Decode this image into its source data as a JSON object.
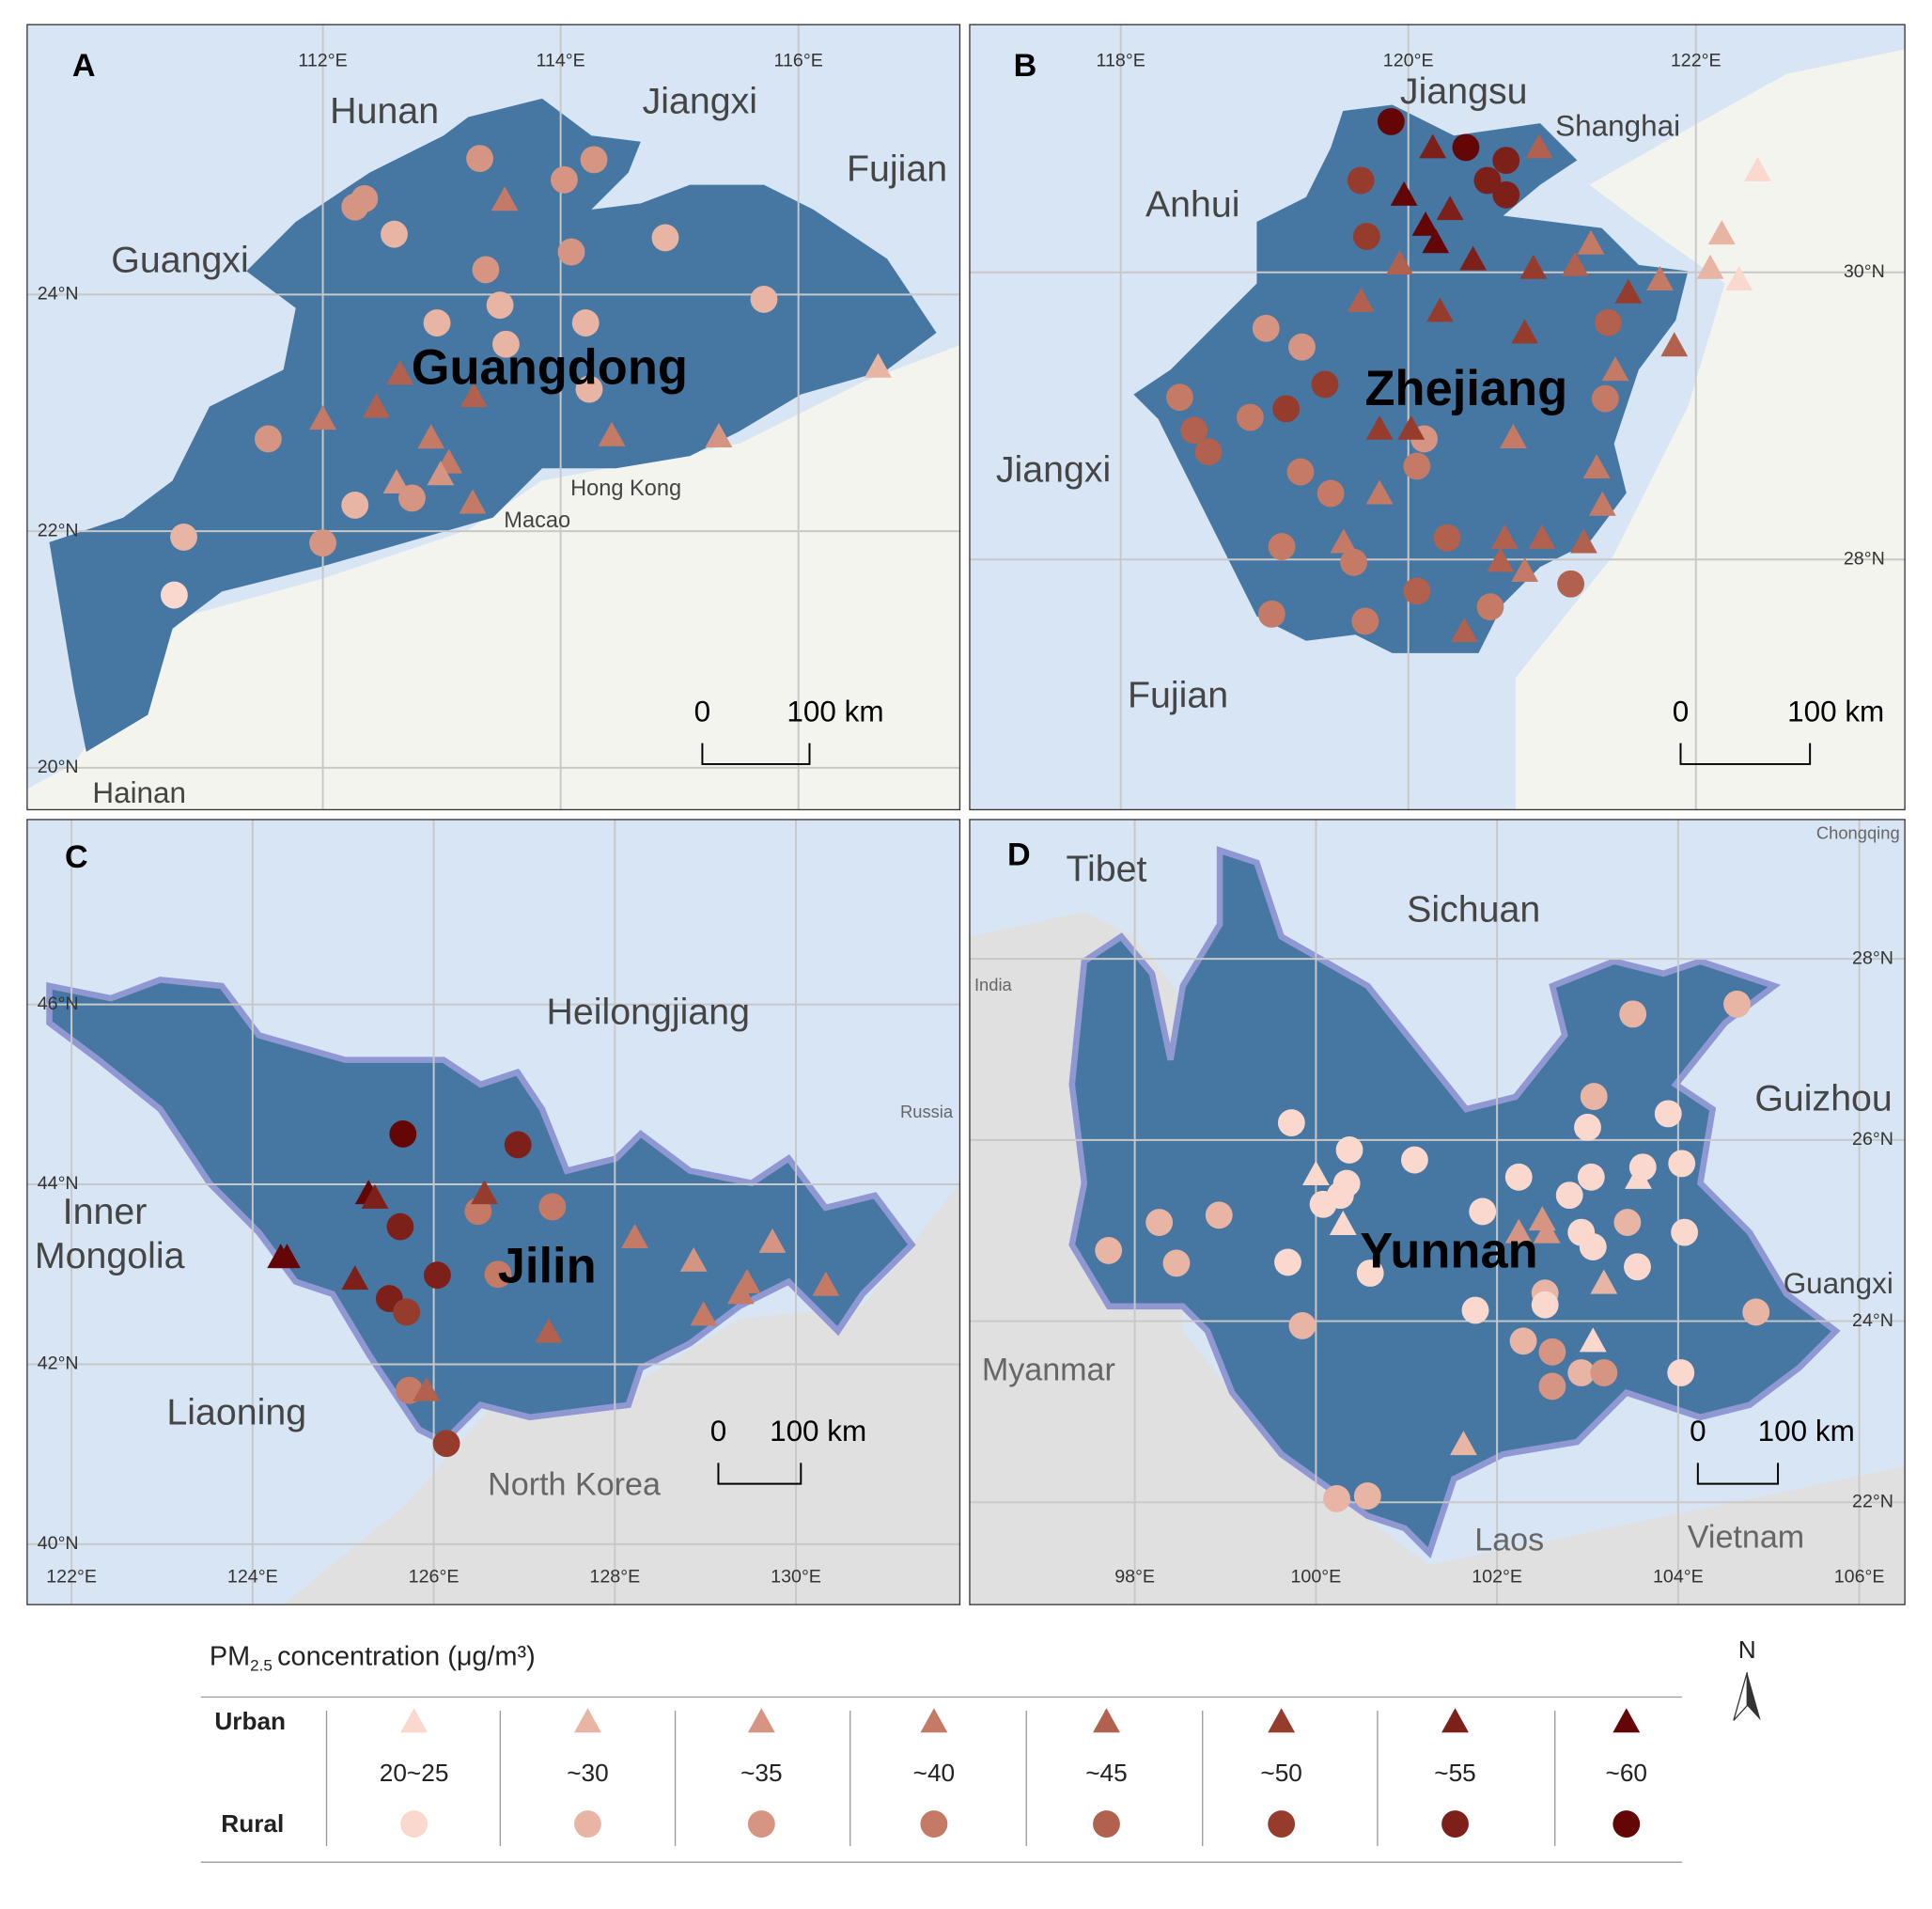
{
  "panels": [
    {
      "letter": "A",
      "places": [
        "Hunan",
        "Jiangxi",
        "Fujian",
        "Guangxi",
        "Guangdong",
        "Hong Kong",
        "Macao",
        "Hainan"
      ],
      "lon_ticks": [
        {
          "value": 112,
          "label": "112°E"
        },
        {
          "value": 114,
          "label": "114°E"
        },
        {
          "value": 116,
          "label": "116°E"
        }
      ],
      "lat_ticks": [
        {
          "value": 24,
          "label": "24°N"
        },
        {
          "value": 22,
          "label": "22°N"
        },
        {
          "value": 20,
          "label": "20°N"
        }
      ],
      "scale_bar": [
        "0",
        "100 km"
      ],
      "rural_sites": [
        [
          113.32,
          25.15,
          35
        ],
        [
          114.28,
          25.14,
          35
        ],
        [
          114.03,
          24.97,
          35
        ],
        [
          112.35,
          24.81,
          35
        ],
        [
          112.27,
          24.74,
          35
        ],
        [
          112.6,
          24.51,
          30
        ],
        [
          114.88,
          24.48,
          30
        ],
        [
          114.09,
          24.36,
          35
        ],
        [
          113.37,
          24.21,
          35
        ],
        [
          115.71,
          23.96,
          30
        ],
        [
          113.49,
          23.91,
          30
        ],
        [
          112.96,
          23.76,
          30
        ],
        [
          114.21,
          23.76,
          30
        ],
        [
          113.54,
          23.58,
          30
        ],
        [
          114.24,
          23.2,
          30
        ],
        [
          111.54,
          22.78,
          35
        ],
        [
          112.75,
          22.28,
          35
        ],
        [
          112.27,
          22.22,
          30
        ],
        [
          112.0,
          21.9,
          35
        ],
        [
          110.83,
          21.95,
          30
        ],
        [
          110.75,
          21.46,
          25
        ]
      ],
      "urban_sites": [
        [
          113.53,
          24.8,
          40
        ],
        [
          112.65,
          23.33,
          45
        ],
        [
          112.45,
          23.05,
          45
        ],
        [
          112.0,
          22.95,
          40
        ],
        [
          112.91,
          22.79,
          40
        ],
        [
          113.06,
          22.58,
          40
        ],
        [
          112.99,
          22.48,
          35
        ],
        [
          112.62,
          22.41,
          35
        ],
        [
          113.26,
          22.24,
          40
        ],
        [
          113.27,
          23.14,
          45
        ],
        [
          114.43,
          22.81,
          40
        ],
        [
          115.33,
          22.8,
          35
        ],
        [
          116.67,
          23.39,
          30
        ]
      ]
    },
    {
      "letter": "B",
      "places": [
        "Jiangsu",
        "Shanghai",
        "Anhui",
        "Zhejiang",
        "Jiangxi",
        "Fujian"
      ],
      "lon_ticks": [
        {
          "value": 118,
          "label": "118°E"
        },
        {
          "value": 120,
          "label": "120°E"
        },
        {
          "value": 122,
          "label": "122°E"
        }
      ],
      "lat_ticks": [
        {
          "value": 30,
          "label": "30°N"
        },
        {
          "value": 28,
          "label": "28°N"
        }
      ],
      "scale_bar": [
        "0",
        "100 km"
      ],
      "rural_sites": [
        [
          119.88,
          31.05,
          60
        ],
        [
          120.4,
          30.87,
          60
        ],
        [
          120.68,
          30.78,
          55
        ],
        [
          120.55,
          30.64,
          55
        ],
        [
          120.68,
          30.54,
          55
        ],
        [
          119.67,
          30.64,
          50
        ],
        [
          119.71,
          30.25,
          50
        ],
        [
          119.01,
          29.61,
          35
        ],
        [
          119.26,
          29.48,
          35
        ],
        [
          119.42,
          29.22,
          50
        ],
        [
          118.41,
          29.13,
          40
        ],
        [
          119.15,
          29.05,
          50
        ],
        [
          118.51,
          28.9,
          45
        ],
        [
          118.61,
          28.75,
          45
        ],
        [
          118.9,
          28.99,
          40
        ],
        [
          120.11,
          28.84,
          35
        ],
        [
          120.06,
          28.65,
          40
        ],
        [
          119.25,
          28.61,
          40
        ],
        [
          119.46,
          28.46,
          40
        ],
        [
          121.39,
          29.65,
          45
        ],
        [
          121.37,
          29.12,
          40
        ],
        [
          119.12,
          28.09,
          40
        ],
        [
          119.62,
          27.98,
          40
        ],
        [
          120.27,
          28.15,
          45
        ],
        [
          120.06,
          27.78,
          45
        ],
        [
          120.57,
          27.67,
          40
        ],
        [
          121.13,
          27.83,
          45
        ],
        [
          119.7,
          27.57,
          40
        ],
        [
          119.05,
          27.62,
          40
        ]
      ],
      "urban_sites": [
        [
          120.17,
          30.87,
          55
        ],
        [
          120.91,
          30.87,
          45
        ],
        [
          119.97,
          30.54,
          60
        ],
        [
          120.29,
          30.44,
          55
        ],
        [
          120.12,
          30.33,
          60
        ],
        [
          120.19,
          30.21,
          60
        ],
        [
          120.45,
          30.09,
          55
        ],
        [
          119.94,
          30.06,
          45
        ],
        [
          120.87,
          30.03,
          50
        ],
        [
          121.16,
          30.05,
          45
        ],
        [
          121.27,
          30.2,
          40
        ],
        [
          121.53,
          29.86,
          50
        ],
        [
          119.67,
          29.8,
          45
        ],
        [
          120.22,
          29.73,
          50
        ],
        [
          120.81,
          29.58,
          50
        ],
        [
          121.85,
          29.49,
          45
        ],
        [
          122.43,
          30.71,
          25
        ],
        [
          122.18,
          30.27,
          30
        ],
        [
          122.1,
          30.03,
          30
        ],
        [
          122.3,
          29.95,
          25
        ],
        [
          121.75,
          29.95,
          40
        ],
        [
          121.44,
          29.32,
          40
        ],
        [
          119.8,
          28.91,
          50
        ],
        [
          120.02,
          28.91,
          50
        ],
        [
          120.73,
          28.85,
          40
        ],
        [
          119.8,
          28.46,
          40
        ],
        [
          121.31,
          28.64,
          40
        ],
        [
          121.35,
          28.38,
          40
        ],
        [
          120.67,
          28.15,
          45
        ],
        [
          120.93,
          28.15,
          45
        ],
        [
          121.22,
          28.12,
          45
        ],
        [
          120.64,
          27.99,
          45
        ],
        [
          120.81,
          27.92,
          40
        ],
        [
          120.39,
          27.5,
          45
        ],
        [
          119.55,
          28.12,
          40
        ]
      ]
    },
    {
      "letter": "C",
      "places": [
        "Heilongjiang",
        "Inner",
        "Mongolia",
        "Jilin",
        "Liaoning",
        "North Korea",
        "Russia"
      ],
      "lon_ticks": [
        {
          "value": 122,
          "label": "122°E"
        },
        {
          "value": 124,
          "label": "124°E"
        },
        {
          "value": 126,
          "label": "126°E"
        },
        {
          "value": 128,
          "label": "128°E"
        },
        {
          "value": 130,
          "label": "130°E"
        }
      ],
      "lat_ticks": [
        {
          "value": 46,
          "label": "46°N"
        },
        {
          "value": 44,
          "label": "44°N"
        },
        {
          "value": 42,
          "label": "42°N"
        },
        {
          "value": 40,
          "label": "40°N"
        }
      ],
      "scale_bar": [
        "0",
        "100 km"
      ],
      "rural_sites": [
        [
          125.66,
          44.56,
          60
        ],
        [
          126.93,
          44.44,
          55
        ],
        [
          125.63,
          43.53,
          55
        ],
        [
          126.49,
          43.7,
          40
        ],
        [
          127.31,
          43.75,
          40
        ],
        [
          126.04,
          42.99,
          55
        ],
        [
          126.71,
          43.0,
          40
        ],
        [
          125.51,
          42.73,
          55
        ],
        [
          125.7,
          42.58,
          50
        ],
        [
          125.73,
          41.71,
          40
        ],
        [
          126.14,
          41.12,
          50
        ]
      ],
      "urban_sites": [
        [
          125.28,
          43.9,
          60
        ],
        [
          125.35,
          43.85,
          55
        ],
        [
          126.56,
          43.9,
          50
        ],
        [
          124.31,
          43.19,
          60
        ],
        [
          124.38,
          43.19,
          60
        ],
        [
          125.13,
          42.95,
          55
        ],
        [
          125.92,
          41.71,
          45
        ],
        [
          127.27,
          42.36,
          45
        ],
        [
          128.22,
          43.41,
          40
        ],
        [
          128.87,
          43.15,
          35
        ],
        [
          129.74,
          43.36,
          35
        ],
        [
          129.46,
          42.91,
          40
        ],
        [
          129.39,
          42.79,
          40
        ],
        [
          128.98,
          42.55,
          40
        ],
        [
          130.33,
          42.88,
          40
        ]
      ]
    },
    {
      "letter": "D",
      "places": [
        "Tibet",
        "Sichuan",
        "Chongqing",
        "India",
        "Guizhou",
        "Guangxi",
        "Yunnan",
        "Myanmar",
        "Laos",
        "Vietnam"
      ],
      "lon_ticks": [
        {
          "value": 98,
          "label": "98°E"
        },
        {
          "value": 100,
          "label": "100°E"
        },
        {
          "value": 102,
          "label": "102°E"
        },
        {
          "value": 104,
          "label": "104°E"
        },
        {
          "value": 106,
          "label": "106°E"
        }
      ],
      "lat_ticks": [
        {
          "value": 28,
          "label": "28°N"
        },
        {
          "value": 26,
          "label": "26°N"
        },
        {
          "value": 24,
          "label": "24°N"
        },
        {
          "value": 22,
          "label": "22°N"
        }
      ],
      "scale_bar": [
        "0",
        "100 km"
      ],
      "rural_sites": [
        [
          103.5,
          27.39,
          30
        ],
        [
          104.65,
          27.5,
          30
        ],
        [
          103.07,
          26.48,
          30
        ],
        [
          99.73,
          26.19,
          25
        ],
        [
          103.89,
          26.29,
          25
        ],
        [
          103.0,
          26.14,
          25
        ],
        [
          100.37,
          25.89,
          25
        ],
        [
          101.09,
          25.78,
          25
        ],
        [
          100.34,
          25.52,
          25
        ],
        [
          100.27,
          25.39,
          25
        ],
        [
          100.08,
          25.29,
          25
        ],
        [
          102.24,
          25.59,
          25
        ],
        [
          101.84,
          25.21,
          25
        ],
        [
          103.04,
          25.59,
          25
        ],
        [
          103.61,
          25.7,
          25
        ],
        [
          104.04,
          25.74,
          25
        ],
        [
          102.8,
          25.39,
          25
        ],
        [
          103.44,
          25.09,
          30
        ],
        [
          104.07,
          24.98,
          25
        ],
        [
          102.93,
          24.98,
          25
        ],
        [
          103.06,
          24.82,
          25
        ],
        [
          98.27,
          25.09,
          30
        ],
        [
          98.93,
          25.17,
          30
        ],
        [
          97.71,
          24.78,
          30
        ],
        [
          98.46,
          24.64,
          30
        ],
        [
          99.69,
          24.65,
          25
        ],
        [
          100.6,
          24.53,
          25
        ],
        [
          103.55,
          24.6,
          25
        ],
        [
          102.53,
          24.31,
          30
        ],
        [
          102.53,
          24.18,
          25
        ],
        [
          101.76,
          24.12,
          25
        ],
        [
          99.85,
          23.95,
          30
        ],
        [
          102.29,
          23.78,
          30
        ],
        [
          102.61,
          23.66,
          35
        ],
        [
          102.93,
          23.43,
          30
        ],
        [
          103.18,
          23.43,
          35
        ],
        [
          102.61,
          23.28,
          35
        ],
        [
          104.03,
          23.43,
          25
        ],
        [
          104.86,
          24.1,
          30
        ],
        [
          100.23,
          22.04,
          30
        ],
        [
          100.57,
          22.07,
          30
        ]
      ],
      "urban_sites": [
        [
          100.0,
          25.62,
          25
        ],
        [
          100.3,
          25.07,
          25
        ],
        [
          102.24,
          24.98,
          35
        ],
        [
          102.5,
          25.12,
          35
        ],
        [
          102.55,
          24.98,
          35
        ],
        [
          103.56,
          25.58,
          25
        ],
        [
          103.18,
          24.42,
          30
        ],
        [
          103.06,
          23.78,
          25
        ],
        [
          101.63,
          22.64,
          30
        ]
      ]
    }
  ],
  "legend": {
    "title_main": "PM",
    "title_sub": "2.5",
    "title_rest": "concentration (μg/m³)",
    "urban": "Urban",
    "rural": "Rural",
    "classes": [
      {
        "value": 25,
        "label": "20~25"
      },
      {
        "value": 30,
        "label": "~30"
      },
      {
        "value": 35,
        "label": "~35"
      },
      {
        "value": 40,
        "label": "~40"
      },
      {
        "value": 45,
        "label": "~45"
      },
      {
        "value": 50,
        "label": "~50"
      },
      {
        "value": 55,
        "label": "~55"
      },
      {
        "value": 60,
        "label": "~60"
      }
    ],
    "colors": [
      "#fbd8cd",
      "#e8b4a3",
      "#d59582",
      "#c47a65",
      "#b1614d",
      "#963c2d",
      "#7e201a",
      "#650606"
    ]
  },
  "north": "N"
}
